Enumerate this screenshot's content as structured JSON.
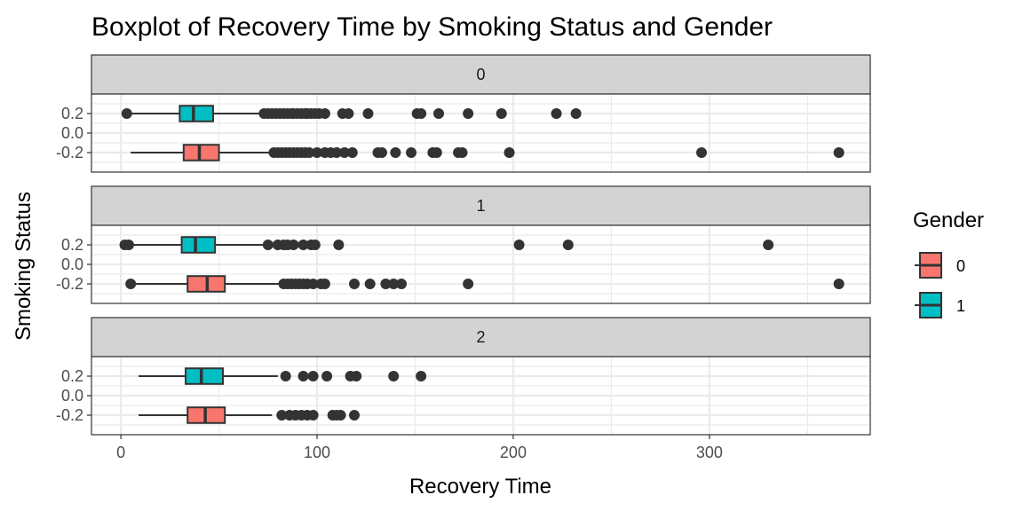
{
  "chart_data": {
    "type": "boxplot",
    "title": "Boxplot of Recovery Time by Smoking Status and Gender",
    "xlabel": "Recovery Time",
    "ylabel": "Smoking Status",
    "xlim": [
      -15,
      382
    ],
    "x_ticks": [
      0,
      100,
      200,
      300
    ],
    "ylim": [
      -0.4,
      0.4
    ],
    "y_ticks": [
      0.2,
      0.0,
      -0.2
    ],
    "y_tick_labels": [
      "0.2",
      "0.0",
      "-0.2"
    ],
    "grid": true,
    "legend": {
      "title": "Gender",
      "position": "right",
      "entries": [
        "0",
        "1"
      ]
    },
    "colors": {
      "0": "#F8766D",
      "1": "#00BFC4",
      "strip": "#D3D3D3",
      "grid": "#EBEBEB",
      "outline": "#333333"
    },
    "facets": [
      {
        "label": "0",
        "groups": [
          {
            "gender": "1",
            "y": 0.2,
            "whisker_low": 3,
            "q1": 30,
            "median": 37,
            "q3": 47,
            "whisker_high": 72,
            "outliers": [
              3,
              73,
              75,
              77,
              79,
              81,
              83,
              85,
              87,
              88,
              90,
              92,
              94,
              95,
              97,
              99,
              101,
              104,
              113,
              116,
              126,
              151,
              153,
              162,
              177,
              194,
              222,
              232
            ]
          },
          {
            "gender": "0",
            "y": -0.2,
            "whisker_low": 5,
            "q1": 32,
            "median": 40,
            "q3": 50,
            "whisker_high": 77,
            "outliers": [
              78,
              80,
              82,
              84,
              86,
              88,
              90,
              92,
              94,
              96,
              100,
              104,
              107,
              110,
              114,
              118,
              131,
              133,
              140,
              148,
              159,
              161,
              172,
              174,
              198,
              296,
              366
            ]
          }
        ]
      },
      {
        "label": "1",
        "groups": [
          {
            "gender": "1",
            "y": 0.2,
            "whisker_low": 3,
            "q1": 31,
            "median": 38,
            "q3": 48,
            "whisker_high": 73,
            "outliers": [
              2,
              4,
              75,
              80,
              83,
              85,
              88,
              93,
              97,
              99,
              111,
              203,
              228,
              330
            ]
          },
          {
            "gender": "0",
            "y": -0.2,
            "whisker_low": 5,
            "q1": 34,
            "median": 44,
            "q3": 53,
            "whisker_high": 82,
            "outliers": [
              5,
              83,
              85,
              87,
              89,
              91,
              93,
              95,
              98,
              102,
              104,
              119,
              127,
              135,
              139,
              143,
              177,
              366
            ]
          }
        ]
      },
      {
        "label": "2",
        "groups": [
          {
            "gender": "1",
            "y": 0.2,
            "whisker_low": 9,
            "q1": 33,
            "median": 41,
            "q3": 52,
            "whisker_high": 80,
            "outliers": [
              84,
              93,
              98,
              105,
              117,
              120,
              139,
              153
            ]
          },
          {
            "gender": "0",
            "y": -0.2,
            "whisker_low": 9,
            "q1": 34,
            "median": 43,
            "q3": 53,
            "whisker_high": 77,
            "outliers": [
              82,
              86,
              89,
              92,
              95,
              98,
              108,
              110,
              112,
              119
            ]
          }
        ]
      }
    ]
  }
}
